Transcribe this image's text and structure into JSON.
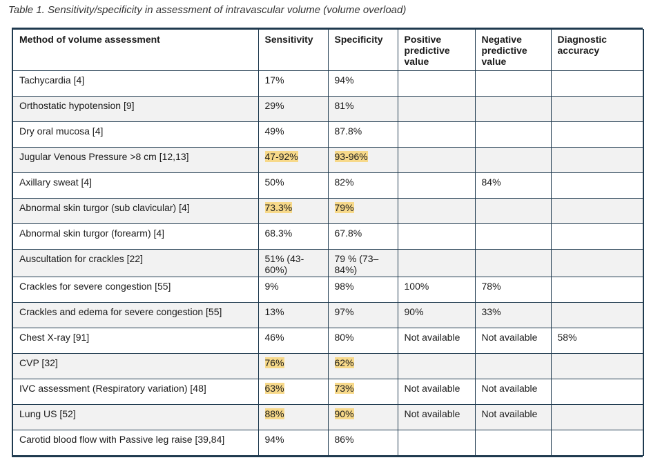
{
  "caption": "Table 1. Sensitivity/specificity in assessment of intravascular volume (volume overload)",
  "headers": [
    "Method of volume assessment",
    "Sensitivity",
    "Specificity",
    "Positive predictive value",
    "Negative predictive value",
    "Diagnostic accuracy"
  ],
  "highlight_color": "#f7d98a",
  "rows": [
    {
      "method": "Tachycardia [4]",
      "sensitivity": "17%",
      "specificity": "94%",
      "ppv": "",
      "npv": "",
      "accuracy": "",
      "highlighted": false
    },
    {
      "method": "Orthostatic hypotension [9]",
      "sensitivity": "29%",
      "specificity": "81%",
      "ppv": "",
      "npv": "",
      "accuracy": "",
      "highlighted": false
    },
    {
      "method": "Dry oral mucosa [4]",
      "sensitivity": "49%",
      "specificity": "87.8%",
      "ppv": "",
      "npv": "",
      "accuracy": "",
      "highlighted": false
    },
    {
      "method": "Jugular Venous Pressure >8 cm [12,13]",
      "sensitivity": "47-92%",
      "specificity": "93-96%",
      "ppv": "",
      "npv": "",
      "accuracy": "",
      "highlighted": true
    },
    {
      "method": "Axillary sweat [4]",
      "sensitivity": "50%",
      "specificity": "82%",
      "ppv": "",
      "npv": "84%",
      "accuracy": "",
      "highlighted": false
    },
    {
      "method": "Abnormal skin turgor (sub clavicular) [4]",
      "sensitivity": "73.3%",
      "specificity": "79%",
      "ppv": "",
      "npv": "",
      "accuracy": "",
      "highlighted": true
    },
    {
      "method": "Abnormal skin turgor (forearm) [4]",
      "sensitivity": "68.3%",
      "specificity": "67.8%",
      "ppv": "",
      "npv": "",
      "accuracy": "",
      "highlighted": false
    },
    {
      "method": "Auscultation for crackles [22]",
      "sensitivity": "51% (43-60%)",
      "specificity": "79 % (73–84%)",
      "ppv": "",
      "npv": "",
      "accuracy": "",
      "highlighted": false
    },
    {
      "method": "Crackles for severe congestion [55]",
      "sensitivity": "9%",
      "specificity": "98%",
      "ppv": "100%",
      "npv": "78%",
      "accuracy": "",
      "highlighted": false
    },
    {
      "method": "Crackles and edema for severe congestion [55]",
      "sensitivity": "13%",
      "specificity": "97%",
      "ppv": "90%",
      "npv": "33%",
      "accuracy": "",
      "highlighted": false
    },
    {
      "method": "Chest X-ray [91]",
      "sensitivity": "46%",
      "specificity": "80%",
      "ppv": "Not available",
      "npv": "Not available",
      "accuracy": "58%",
      "highlighted": false
    },
    {
      "method": "CVP [32]",
      "sensitivity": "76%",
      "specificity": "62%",
      "ppv": "",
      "npv": "",
      "accuracy": "",
      "highlighted": true
    },
    {
      "method": "IVC assessment (Respiratory variation) [48]",
      "sensitivity": "63%",
      "specificity": "73%",
      "ppv": "Not available",
      "npv": "Not available",
      "accuracy": "",
      "highlighted": true
    },
    {
      "method": "Lung US [52]",
      "sensitivity": "88%",
      "specificity": "90%",
      "ppv": "Not available",
      "npv": "Not available",
      "accuracy": "",
      "highlighted": true
    },
    {
      "method": "Carotid blood flow with Passive leg raise [39,84]",
      "sensitivity": "94%",
      "specificity": "86%",
      "ppv": "",
      "npv": "",
      "accuracy": "",
      "highlighted": false
    }
  ]
}
